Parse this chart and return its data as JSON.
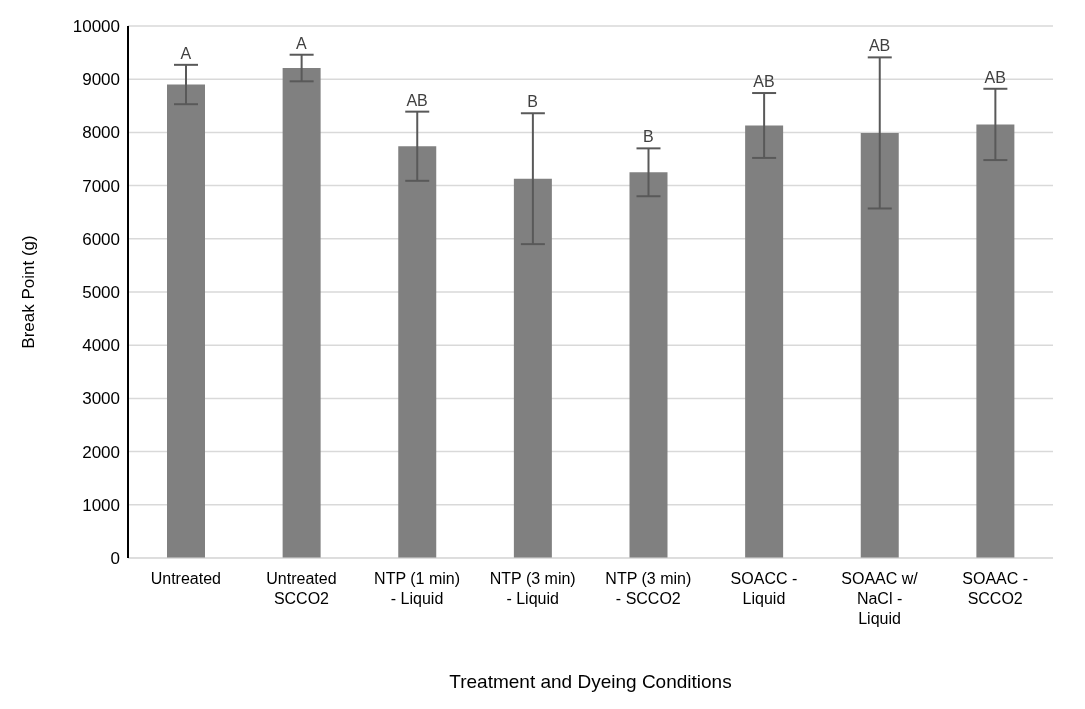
{
  "chart_data": {
    "type": "bar",
    "xlabel": "Treatment and Dyeing Conditions",
    "ylabel": "Break Point (g)",
    "categories": [
      "Untreated",
      "Untreated SCCO2",
      "NTP (1 min) - Liquid",
      "NTP (3 min) - Liquid",
      "NTP (3 min) - SCCO2",
      "SOACC - Liquid",
      "SOAAC w/ NaCl - Liquid",
      "SOAAC - SCCO2"
    ],
    "values": [
      8900,
      9210,
      7740,
      7130,
      7250,
      8130,
      7990,
      8150
    ],
    "errors": [
      370,
      250,
      650,
      1230,
      450,
      610,
      1420,
      670
    ],
    "color": "#808080",
    "ylim": [
      0,
      10000
    ],
    "yticks": [
      0,
      1000,
      2000,
      3000,
      4000,
      5000,
      6000,
      7000,
      8000,
      9000,
      10000
    ],
    "grid": "y",
    "annotations": [
      {
        "text": "A",
        "x": "Untreated",
        "y": 9270
      },
      {
        "text": "A",
        "x": "Untreated SCCO2",
        "y": 9460
      },
      {
        "text": "AB",
        "x": "NTP (1 min) - Liquid",
        "y": 8390
      },
      {
        "text": "B",
        "x": "NTP (3 min) - Liquid",
        "y": 8360
      },
      {
        "text": "B",
        "x": "NTP (3 min) - SCCO2",
        "y": 7700
      },
      {
        "text": "AB",
        "x": "SOACC - Liquid",
        "y": 8740
      },
      {
        "text": "AB",
        "x": "SOAAC w/ NaCl - Liquid",
        "y": 9420
      },
      {
        "text": "AB",
        "x": "SOAAC - SCCO2",
        "y": 8820
      }
    ]
  }
}
